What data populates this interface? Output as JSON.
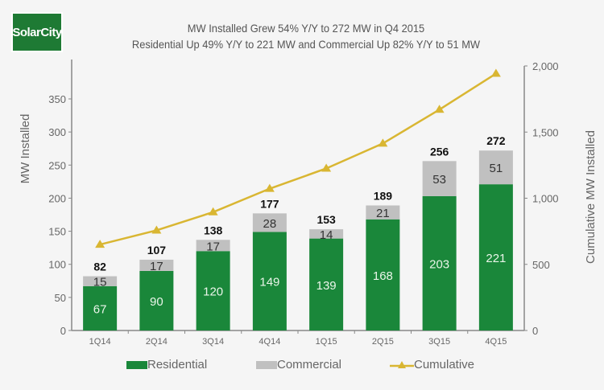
{
  "logo": {
    "text": "SolarCity"
  },
  "chart_data": {
    "type": "bar",
    "stacked": true,
    "title": "MW Installed Grew 54% Y/Y to 272 MW in Q4 2015",
    "subtitle": "Residential Up 49% Y/Y to 221 MW and Commercial Up 82% Y/Y to 51 MW",
    "categories": [
      "1Q14",
      "2Q14",
      "3Q14",
      "4Q14",
      "1Q15",
      "2Q15",
      "3Q15",
      "4Q15"
    ],
    "series": [
      {
        "name": "Residential",
        "type": "bar",
        "axis": "left",
        "color": "#1a873a",
        "values": [
          67,
          90,
          120,
          149,
          139,
          168,
          203,
          221
        ]
      },
      {
        "name": "Commercial",
        "type": "bar",
        "axis": "left",
        "color": "#c0c0c0",
        "values": [
          15,
          17,
          17,
          28,
          14,
          21,
          53,
          51
        ]
      },
      {
        "name": "Cumulative",
        "type": "line",
        "axis": "right",
        "color": "#d9b632",
        "marker": "triangle",
        "values": [
          650,
          757,
          895,
          1072,
          1225,
          1414,
          1670,
          1942
        ]
      }
    ],
    "totals": [
      82,
      107,
      138,
      177,
      153,
      189,
      256,
      272
    ],
    "ylabel": "MW Installed",
    "ylim": [
      0,
      390
    ],
    "yticks": [
      0,
      50,
      100,
      150,
      200,
      250,
      300,
      350
    ],
    "y2label": "Cumulative MW Installed",
    "y2lim": [
      0,
      2000
    ],
    "y2ticks": [
      "0",
      "500",
      "1,000",
      "1,500",
      "2,000"
    ],
    "y2tick_values": [
      0,
      500,
      1000,
      1500,
      2000
    ],
    "legend": {
      "position": "bottom",
      "items": [
        "Residential",
        "Commercial",
        "Cumulative"
      ]
    },
    "grid": false
  }
}
